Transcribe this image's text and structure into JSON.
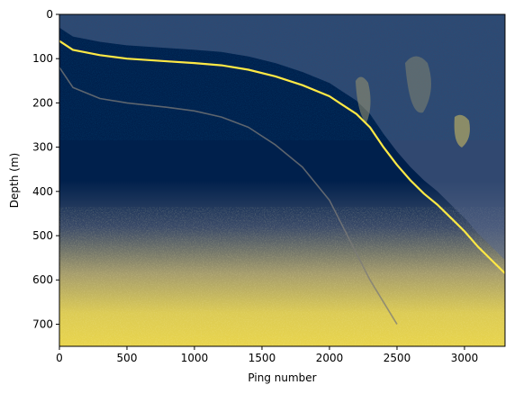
{
  "chart_data": {
    "type": "heatmap",
    "xlabel": "Ping number",
    "ylabel": "Depth (m)",
    "xlim": [
      0,
      3300
    ],
    "ylim": [
      750,
      0
    ],
    "x_ticks": [
      0,
      500,
      1000,
      1500,
      2000,
      2500,
      3000
    ],
    "y_ticks": [
      0,
      100,
      200,
      300,
      400,
      500,
      600,
      700
    ],
    "colormap": [
      "#00204c",
      "#7c7b78",
      "#ffe945"
    ],
    "grid": false,
    "series": [
      {
        "x": [
          0,
          100,
          300,
          500,
          800,
          1000,
          1200,
          1400,
          1600,
          1800,
          2000,
          2100,
          2200,
          2300,
          2400,
          2500,
          2600,
          2700,
          2800,
          2900,
          3000,
          3100,
          3200,
          3300
        ],
        "y": [
          60,
          80,
          92,
          100,
          106,
          110,
          115,
          125,
          140,
          160,
          185,
          205,
          225,
          255,
          300,
          340,
          375,
          405,
          430,
          460,
          490,
          525,
          555,
          585
        ]
      },
      {
        "x": [
          0,
          100,
          300,
          500,
          800,
          1000,
          1200,
          1400,
          1600,
          1800,
          2000,
          2100,
          2200,
          2300,
          2400,
          2500
        ],
        "y": [
          120,
          165,
          190,
          200,
          210,
          218,
          232,
          255,
          295,
          345,
          420,
          480,
          540,
          600,
          650,
          700
        ]
      }
    ]
  }
}
